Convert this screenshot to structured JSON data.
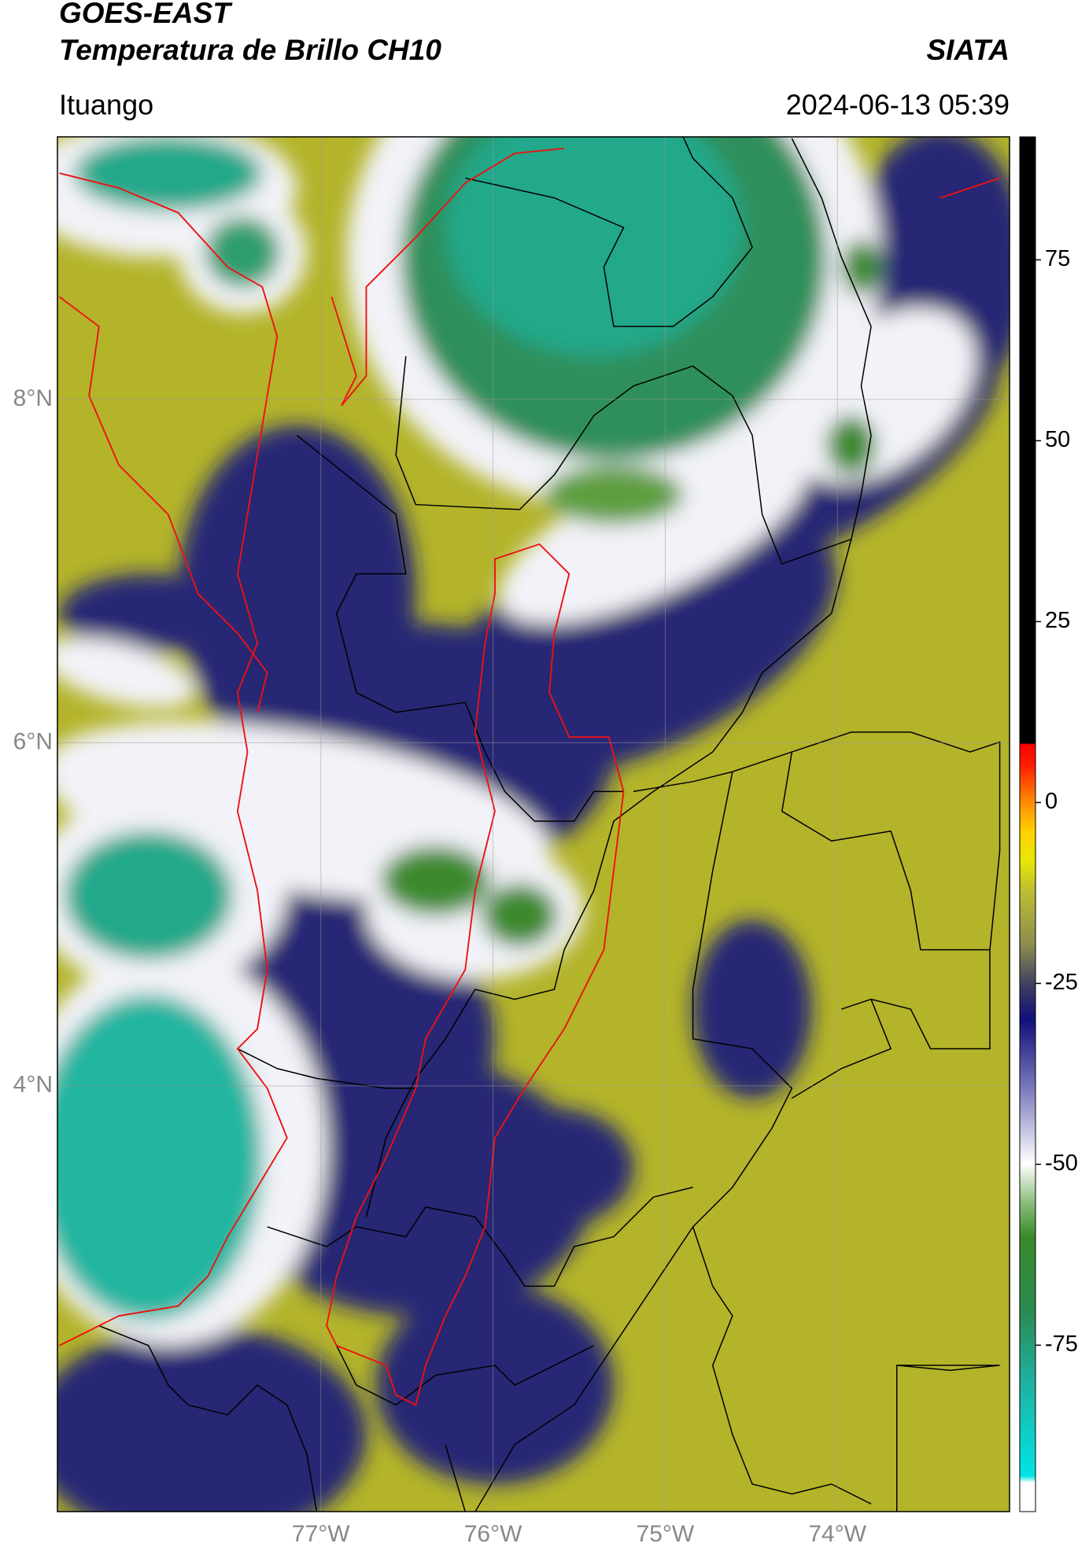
{
  "header": {
    "satellite": "GOES-EAST",
    "product": "Temperatura de Brillo CH10",
    "source": "SIATA",
    "location": "Ituango",
    "datetime": "2024-06-13 05:39"
  },
  "map": {
    "xlim": [
      -78.53,
      -73.0
    ],
    "ylim": [
      1.52,
      9.53
    ],
    "xticks": [
      {
        "value": -77,
        "label": "77°W"
      },
      {
        "value": -76,
        "label": "76°W"
      },
      {
        "value": -75,
        "label": "75°W"
      },
      {
        "value": -74,
        "label": "74°W"
      }
    ],
    "yticks": [
      {
        "value": 8,
        "label": "8°N"
      },
      {
        "value": 6,
        "label": "6°N"
      },
      {
        "value": 4,
        "label": "4°N"
      }
    ],
    "grid": true
  },
  "colorbar": {
    "lim": [
      -98,
      92
    ],
    "ticks": [
      -75,
      -50,
      -25,
      0,
      25,
      50,
      75
    ]
  }
}
